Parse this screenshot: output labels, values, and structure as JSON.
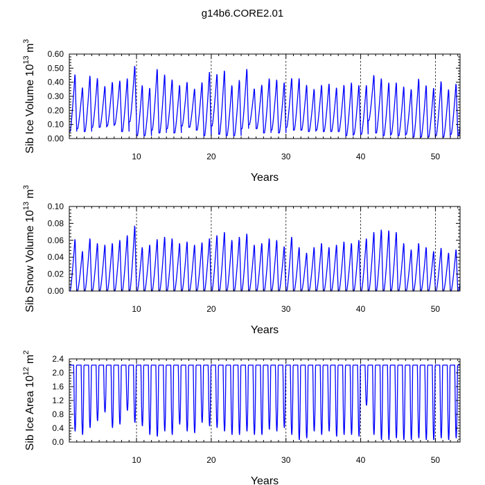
{
  "title": "g14b6.CORE2.01",
  "colors": {
    "series": "#0000ff",
    "axis": "#000000",
    "reference_line": "#000000"
  },
  "chart_data": [
    {
      "type": "line",
      "id": "ice-volume",
      "xlabel": "Years",
      "ylabel": "Sib Ice Volume 10",
      "ylabel_exponent": "13",
      "ylabel_unit": "m",
      "ylabel_unit_exponent": "3",
      "xlim": [
        1,
        53.3
      ],
      "ylim": [
        0,
        0.6
      ],
      "xticks": [
        10,
        20,
        30,
        40,
        50
      ],
      "xtick_labels": [
        "10",
        "20",
        "30",
        "40",
        "50"
      ],
      "yticks": [
        0,
        0.1,
        0.2,
        0.3,
        0.4,
        0.5,
        0.6
      ],
      "ytick_labels": [
        "0.00",
        "0.10",
        "0.20",
        "0.30",
        "0.40",
        "0.50",
        "0.60"
      ],
      "reference_lines_x": [
        10,
        20,
        30,
        40,
        50
      ],
      "grid": false,
      "series_annual": {
        "year": [
          1,
          2,
          3,
          4,
          5,
          6,
          7,
          8,
          9,
          10,
          11,
          12,
          13,
          14,
          15,
          16,
          17,
          18,
          19,
          20,
          21,
          22,
          23,
          24,
          25,
          26,
          27,
          28,
          29,
          30,
          31,
          32,
          33,
          34,
          35,
          36,
          37,
          38,
          39,
          40,
          41,
          42,
          43,
          44,
          45,
          46,
          47,
          48,
          49,
          50,
          51,
          52,
          53
        ],
        "max": [
          0.48,
          0.38,
          0.47,
          0.45,
          0.39,
          0.42,
          0.43,
          0.45,
          0.54,
          0.4,
          0.38,
          0.52,
          0.48,
          0.44,
          0.4,
          0.42,
          0.37,
          0.42,
          0.5,
          0.48,
          0.51,
          0.4,
          0.44,
          0.52,
          0.37,
          0.4,
          0.45,
          0.44,
          0.42,
          0.45,
          0.45,
          0.4,
          0.37,
          0.4,
          0.41,
          0.38,
          0.4,
          0.42,
          0.4,
          0.4,
          0.47,
          0.45,
          0.42,
          0.42,
          0.39,
          0.37,
          0.45,
          0.4,
          0.38,
          0.43,
          0.37,
          0.41,
          0.38
        ],
        "min": [
          0.05,
          0.07,
          0.05,
          0.08,
          0.08,
          0.09,
          0.1,
          0.05,
          0.12,
          0.02,
          0.02,
          0.06,
          0.04,
          0.07,
          0.04,
          0.09,
          0.08,
          0.06,
          0.02,
          0.09,
          0.03,
          0.02,
          0.02,
          0.07,
          0.1,
          0.07,
          0.04,
          0.06,
          0.04,
          0.08,
          0.06,
          0.06,
          0.05,
          0.06,
          0.05,
          0.05,
          0.05,
          0.02,
          0.03,
          0.03,
          0.13,
          0.04,
          0.02,
          0.03,
          0.02,
          0.03,
          0.01,
          0.01,
          0.01,
          0.02,
          0.01,
          0.03,
          0.02
        ]
      }
    },
    {
      "type": "line",
      "id": "snow-volume",
      "xlabel": "Years",
      "ylabel": "Sib Snow Volume 10",
      "ylabel_exponent": "13",
      "ylabel_unit": "m",
      "ylabel_unit_exponent": "3",
      "xlim": [
        1,
        53.3
      ],
      "ylim": [
        0,
        0.1
      ],
      "xticks": [
        10,
        20,
        30,
        40,
        50
      ],
      "xtick_labels": [
        "10",
        "20",
        "30",
        "40",
        "50"
      ],
      "yticks": [
        0,
        0.02,
        0.04,
        0.06,
        0.08,
        0.1
      ],
      "ytick_labels": [
        "0.00",
        "0.02",
        "0.04",
        "0.06",
        "0.08",
        "0.10"
      ],
      "reference_lines_x": [
        10,
        20,
        30,
        40,
        50
      ],
      "grid": false,
      "series_annual": {
        "year": [
          1,
          2,
          3,
          4,
          5,
          6,
          7,
          8,
          9,
          10,
          11,
          12,
          13,
          14,
          15,
          16,
          17,
          18,
          19,
          20,
          21,
          22,
          23,
          24,
          25,
          26,
          27,
          28,
          29,
          30,
          31,
          32,
          33,
          34,
          35,
          36,
          37,
          38,
          39,
          40,
          41,
          42,
          43,
          44,
          45,
          46,
          47,
          48,
          49,
          50,
          51,
          52,
          53
        ],
        "max": [
          0.065,
          0.05,
          0.066,
          0.06,
          0.058,
          0.06,
          0.064,
          0.07,
          0.082,
          0.055,
          0.058,
          0.065,
          0.068,
          0.066,
          0.06,
          0.062,
          0.058,
          0.061,
          0.066,
          0.07,
          0.074,
          0.064,
          0.068,
          0.072,
          0.058,
          0.06,
          0.066,
          0.064,
          0.056,
          0.068,
          0.055,
          0.048,
          0.055,
          0.06,
          0.055,
          0.058,
          0.062,
          0.06,
          0.064,
          0.066,
          0.074,
          0.077,
          0.076,
          0.074,
          0.06,
          0.052,
          0.06,
          0.055,
          0.05,
          0.054,
          0.048,
          0.052,
          0.05
        ],
        "min": [
          0,
          0,
          0,
          0,
          0,
          0,
          0,
          0,
          0,
          0,
          0,
          0,
          0,
          0,
          0,
          0,
          0,
          0,
          0,
          0,
          0,
          0,
          0,
          0,
          0,
          0,
          0,
          0,
          0,
          0,
          0,
          0,
          0,
          0,
          0,
          0,
          0,
          0,
          0,
          0,
          0,
          0,
          0,
          0,
          0,
          0,
          0,
          0,
          0,
          0,
          0,
          0,
          0
        ]
      }
    },
    {
      "type": "line",
      "id": "ice-area",
      "xlabel": "Years",
      "ylabel": "Sib Ice Area 10",
      "ylabel_exponent": "12",
      "ylabel_unit": "m",
      "ylabel_unit_exponent": "2",
      "xlim": [
        1,
        53.3
      ],
      "ylim": [
        0,
        2.4
      ],
      "xticks": [
        10,
        20,
        30,
        40,
        50
      ],
      "xtick_labels": [
        "10",
        "20",
        "30",
        "40",
        "50"
      ],
      "yticks": [
        0,
        0.4,
        0.8,
        1.2,
        1.6,
        2.0,
        2.4
      ],
      "ytick_labels": [
        "0.0",
        "0.4",
        "0.8",
        "1.2",
        "1.6",
        "2.0",
        "2.4"
      ],
      "reference_lines_x": [
        10,
        20,
        30,
        40,
        50
      ],
      "grid": false,
      "series_annual": {
        "year": [
          1,
          2,
          3,
          4,
          5,
          6,
          7,
          8,
          9,
          10,
          11,
          12,
          13,
          14,
          15,
          16,
          17,
          18,
          19,
          20,
          21,
          22,
          23,
          24,
          25,
          26,
          27,
          28,
          29,
          30,
          31,
          32,
          33,
          34,
          35,
          36,
          37,
          38,
          39,
          40,
          41,
          42,
          43,
          44,
          45,
          46,
          47,
          48,
          49,
          50,
          51,
          52,
          53
        ],
        "max": [
          2.22,
          2.22,
          2.22,
          2.22,
          2.22,
          2.22,
          2.22,
          2.22,
          2.22,
          2.22,
          2.22,
          2.22,
          2.22,
          2.22,
          2.22,
          2.22,
          2.22,
          2.22,
          2.22,
          2.22,
          2.22,
          2.22,
          2.22,
          2.22,
          2.22,
          2.22,
          2.22,
          2.22,
          2.22,
          2.22,
          2.22,
          2.22,
          2.22,
          2.22,
          2.22,
          2.22,
          2.22,
          2.22,
          2.22,
          2.22,
          2.22,
          2.22,
          2.22,
          2.22,
          2.22,
          2.22,
          2.22,
          2.22,
          2.22,
          2.22,
          2.22,
          2.22,
          2.22
        ],
        "min": [
          0.3,
          0.2,
          0.4,
          0.6,
          0.85,
          0.4,
          0.5,
          0.9,
          0.55,
          0.45,
          0.2,
          0.15,
          0.3,
          0.2,
          0.5,
          0.3,
          0.25,
          0.55,
          0.45,
          0.4,
          0.3,
          0.2,
          0.2,
          0.3,
          0.2,
          0.2,
          0.35,
          0.3,
          0.4,
          0.2,
          0.05,
          0.1,
          0.3,
          0.2,
          0.3,
          0.15,
          0.2,
          0.2,
          0.15,
          1.05,
          0.2,
          0.05,
          0.05,
          0.1,
          0.05,
          0.05,
          0.1,
          0.05,
          0.05,
          0.1,
          0.05,
          0.1,
          0.05
        ]
      }
    }
  ]
}
